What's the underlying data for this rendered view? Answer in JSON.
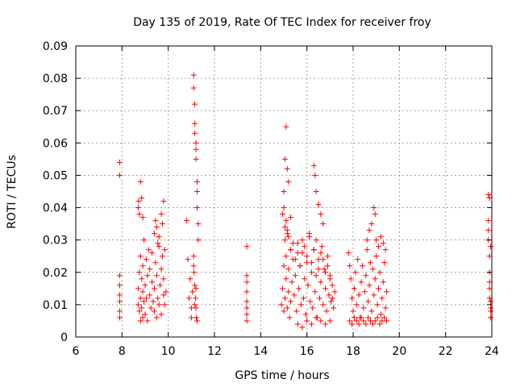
{
  "chart_data": {
    "type": "scatter",
    "title": "Day 135 of 2019, Rate Of TEC Index for receiver froy",
    "xlabel": "GPS time / hours",
    "ylabel": "ROTI / TECUs",
    "xlim": [
      6,
      24
    ],
    "ylim": [
      0,
      0.09
    ],
    "x_ticks": [
      6,
      8,
      10,
      12,
      14,
      16,
      18,
      20,
      22,
      24
    ],
    "x_tick_labels": [
      "6",
      "8",
      "10",
      "12",
      "14",
      "16",
      "18",
      "20",
      "22",
      "24"
    ],
    "y_ticks": [
      0,
      0.01,
      0.02,
      0.03,
      0.04,
      0.05,
      0.06,
      0.07,
      0.08,
      0.09
    ],
    "y_tick_labels": [
      "0",
      "0.01",
      "0.02",
      "0.03",
      "0.04",
      "0.05",
      "0.06",
      "0.07",
      "0.08",
      "0.09"
    ],
    "grid": true,
    "marker": "+",
    "color": "#ff0000",
    "series": [
      {
        "name": "ROTI",
        "x": [
          7.9,
          7.9,
          7.9,
          7.9,
          7.9,
          7.9,
          7.9,
          7.9,
          8.7,
          8.7,
          8.75,
          8.75,
          8.8,
          8.8,
          8.8,
          8.85,
          8.85,
          8.9,
          8.9,
          8.9,
          8.95,
          8.95,
          9.0,
          9.0,
          9.05,
          9.05,
          9.1,
          9.1,
          9.15,
          9.2,
          9.2,
          9.25,
          9.3,
          9.3,
          9.35,
          9.4,
          9.4,
          9.45,
          9.5,
          9.5,
          9.55,
          9.6,
          9.6,
          9.65,
          9.7,
          9.7,
          9.75,
          9.8,
          9.8,
          9.85,
          9.9,
          8.7,
          8.72,
          8.75,
          8.8,
          8.85,
          8.9,
          9.4,
          9.45,
          9.5,
          9.55,
          9.6,
          9.7,
          9.75,
          9.8,
          9.85,
          10.8,
          10.85,
          10.9,
          10.95,
          11.0,
          11.0,
          11.05,
          11.1,
          11.1,
          11.15,
          11.15,
          11.15,
          11.2,
          11.2,
          11.2,
          11.25,
          11.25,
          11.25,
          11.3,
          11.3,
          11.1,
          11.12,
          11.15,
          11.18,
          11.2,
          11.22,
          11.25,
          11.15,
          11.2,
          11.1,
          13.4,
          13.4,
          13.4,
          13.4,
          13.4,
          13.4,
          13.4,
          13.4,
          14.9,
          14.95,
          15.0,
          15.0,
          15.05,
          15.05,
          15.1,
          15.1,
          15.15,
          15.15,
          15.2,
          15.2,
          15.25,
          15.3,
          15.3,
          15.35,
          15.4,
          15.45,
          15.5,
          15.55,
          15.6,
          15.65,
          15.7,
          15.75,
          15.8,
          15.85,
          15.9,
          15.95,
          16.0,
          16.05,
          16.1,
          16.15,
          16.2,
          16.25,
          16.3,
          16.35,
          16.4,
          16.45,
          16.5,
          16.55,
          16.6,
          16.65,
          16.7,
          16.75,
          16.8,
          16.85,
          16.9,
          16.95,
          17.0,
          17.05,
          17.1,
          17.15,
          17.2,
          14.95,
          15.0,
          15.05,
          15.1,
          15.15,
          15.2,
          15.3,
          15.4,
          15.5,
          15.6,
          15.7,
          15.8,
          15.9,
          16.0,
          16.1,
          16.2,
          16.3,
          16.4,
          16.5,
          16.6,
          16.7,
          16.8,
          16.9,
          17.0,
          17.1,
          15.0,
          15.05,
          15.1,
          15.15,
          15.2,
          15.3,
          16.3,
          16.35,
          16.4,
          16.5,
          16.6,
          16.7,
          15.6,
          15.8,
          16.0,
          16.2,
          16.4,
          16.6,
          16.8,
          17.0,
          17.8,
          17.85,
          17.9,
          17.95,
          18.0,
          18.05,
          18.1,
          18.15,
          18.2,
          18.25,
          18.3,
          18.35,
          18.4,
          18.45,
          18.5,
          18.55,
          18.6,
          18.65,
          18.7,
          18.75,
          18.8,
          18.85,
          18.9,
          18.95,
          19.0,
          19.05,
          19.1,
          19.15,
          19.2,
          19.25,
          19.3,
          19.35,
          19.4,
          19.45,
          17.85,
          17.95,
          18.05,
          18.15,
          18.25,
          18.35,
          18.45,
          18.55,
          18.65,
          18.75,
          18.85,
          18.95,
          19.05,
          19.15,
          19.25,
          19.35,
          19.45,
          18.6,
          18.7,
          18.8,
          18.9,
          18.95,
          19.0,
          19.1,
          19.2,
          19.3,
          19.4,
          23.85,
          23.85,
          23.85,
          23.9,
          23.9,
          23.9,
          23.9,
          23.95,
          23.95,
          23.95,
          23.95,
          23.85,
          23.9,
          23.95,
          23.9
        ],
        "y": [
          0.054,
          0.05,
          0.019,
          0.016,
          0.013,
          0.011,
          0.008,
          0.006,
          0.01,
          0.015,
          0.008,
          0.02,
          0.012,
          0.005,
          0.025,
          0.018,
          0.009,
          0.022,
          0.006,
          0.014,
          0.011,
          0.03,
          0.016,
          0.007,
          0.024,
          0.012,
          0.019,
          0.005,
          0.027,
          0.013,
          0.021,
          0.009,
          0.017,
          0.026,
          0.011,
          0.008,
          0.015,
          0.023,
          0.006,
          0.019,
          0.012,
          0.028,
          0.01,
          0.016,
          0.021,
          0.007,
          0.025,
          0.013,
          0.018,
          0.01,
          0.014,
          0.04,
          0.042,
          0.038,
          0.048,
          0.043,
          0.037,
          0.032,
          0.036,
          0.034,
          0.029,
          0.031,
          0.038,
          0.035,
          0.042,
          0.027,
          0.036,
          0.024,
          0.012,
          0.018,
          0.009,
          0.006,
          0.014,
          0.081,
          0.077,
          0.072,
          0.066,
          0.063,
          0.06,
          0.058,
          0.055,
          0.048,
          0.045,
          0.04,
          0.035,
          0.03,
          0.025,
          0.02,
          0.016,
          0.012,
          0.009,
          0.006,
          0.005,
          0.01,
          0.015,
          0.022,
          0.028,
          0.019,
          0.017,
          0.014,
          0.011,
          0.009,
          0.007,
          0.005,
          0.01,
          0.015,
          0.022,
          0.008,
          0.03,
          0.012,
          0.025,
          0.018,
          0.009,
          0.032,
          0.014,
          0.021,
          0.006,
          0.027,
          0.011,
          0.017,
          0.024,
          0.013,
          0.019,
          0.008,
          0.029,
          0.015,
          0.022,
          0.01,
          0.026,
          0.012,
          0.018,
          0.007,
          0.023,
          0.016,
          0.031,
          0.011,
          0.02,
          0.009,
          0.027,
          0.014,
          0.019,
          0.006,
          0.024,
          0.012,
          0.017,
          0.028,
          0.01,
          0.021,
          0.015,
          0.008,
          0.025,
          0.013,
          0.019,
          0.011,
          0.016,
          0.009,
          0.014,
          0.038,
          0.04,
          0.034,
          0.036,
          0.033,
          0.031,
          0.027,
          0.029,
          0.024,
          0.026,
          0.022,
          0.03,
          0.028,
          0.025,
          0.032,
          0.023,
          0.027,
          0.03,
          0.021,
          0.026,
          0.024,
          0.02,
          0.022,
          0.018,
          0.012,
          0.045,
          0.055,
          0.065,
          0.052,
          0.048,
          0.037,
          0.053,
          0.05,
          0.045,
          0.041,
          0.038,
          0.035,
          0.004,
          0.003,
          0.005,
          0.004,
          0.006,
          0.005,
          0.004,
          0.005,
          0.026,
          0.022,
          0.018,
          0.012,
          0.008,
          0.015,
          0.02,
          0.01,
          0.024,
          0.013,
          0.006,
          0.017,
          0.022,
          0.009,
          0.014,
          0.019,
          0.027,
          0.011,
          0.016,
          0.023,
          0.008,
          0.021,
          0.013,
          0.018,
          0.025,
          0.01,
          0.015,
          0.02,
          0.007,
          0.012,
          0.017,
          0.023,
          0.009,
          0.014,
          0.005,
          0.004,
          0.006,
          0.005,
          0.004,
          0.006,
          0.005,
          0.004,
          0.006,
          0.005,
          0.004,
          0.005,
          0.006,
          0.004,
          0.005,
          0.006,
          0.005,
          0.03,
          0.033,
          0.035,
          0.04,
          0.038,
          0.03,
          0.028,
          0.031,
          0.029,
          0.027,
          0.036,
          0.033,
          0.03,
          0.025,
          0.02,
          0.017,
          0.015,
          0.011,
          0.009,
          0.008,
          0.006,
          0.044,
          0.043,
          0.028,
          0.012
        ]
      }
    ]
  }
}
